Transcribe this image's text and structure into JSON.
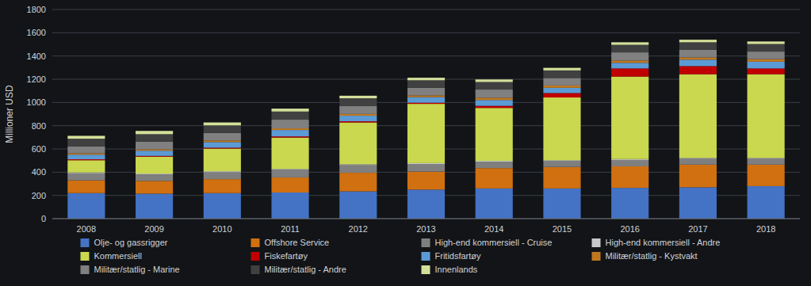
{
  "chart_data": {
    "type": "bar",
    "stacked": true,
    "categories": [
      "2008",
      "2009",
      "2010",
      "2011",
      "2012",
      "2013",
      "2014",
      "2015",
      "2016",
      "2017",
      "2018"
    ],
    "series": [
      {
        "name": "Olje- og gassrigger",
        "color": "#4472c4",
        "values": [
          220,
          215,
          220,
          225,
          235,
          250,
          260,
          260,
          265,
          270,
          280
        ]
      },
      {
        "name": "Offshore Service",
        "color": "#d07010",
        "values": [
          110,
          110,
          120,
          130,
          160,
          155,
          175,
          185,
          185,
          195,
          185
        ]
      },
      {
        "name": "High-end kommersiell - Cruise",
        "color": "#7f7f7f",
        "values": [
          60,
          55,
          60,
          65,
          65,
          65,
          55,
          50,
          55,
          50,
          50
        ]
      },
      {
        "name": "High-end kommersiell - Andre",
        "color": "#c8c8c8",
        "values": [
          8,
          8,
          8,
          8,
          8,
          8,
          8,
          8,
          8,
          8,
          8
        ]
      },
      {
        "name": "Kommersiell",
        "color": "#c9d84e",
        "values": [
          105,
          145,
          195,
          270,
          360,
          510,
          455,
          540,
          710,
          720,
          720
        ]
      },
      {
        "name": "Fiskefartøy",
        "color": "#c00000",
        "values": [
          8,
          7,
          8,
          10,
          10,
          10,
          18,
          38,
          70,
          70,
          50
        ]
      },
      {
        "name": "Fritidsfartøy",
        "color": "#5b9bd5",
        "values": [
          40,
          45,
          48,
          55,
          48,
          48,
          50,
          45,
          48,
          55,
          58
        ]
      },
      {
        "name": "Militær/statlig - Kystvakt",
        "color": "#c07820",
        "values": [
          12,
          12,
          14,
          14,
          15,
          15,
          20,
          20,
          20,
          20,
          22
        ]
      },
      {
        "name": "Militær/statlig - Marine",
        "color": "#808080",
        "values": [
          60,
          65,
          65,
          75,
          70,
          65,
          70,
          65,
          70,
          65,
          65
        ]
      },
      {
        "name": "Militær/statlig - Andre",
        "color": "#404040",
        "values": [
          65,
          65,
          65,
          70,
          65,
          65,
          65,
          65,
          65,
          65,
          65
        ]
      },
      {
        "name": "Innenlands",
        "color": "#d4e09a",
        "values": [
          25,
          28,
          25,
          25,
          22,
          22,
          22,
          22,
          22,
          22,
          22
        ]
      }
    ],
    "ylabel": "Millioner USD",
    "ylim": [
      0,
      1800
    ],
    "yticks": [
      0,
      200,
      400,
      600,
      800,
      1000,
      1200,
      1400,
      1600,
      1800
    ],
    "grid": true,
    "legend": "bottom"
  }
}
